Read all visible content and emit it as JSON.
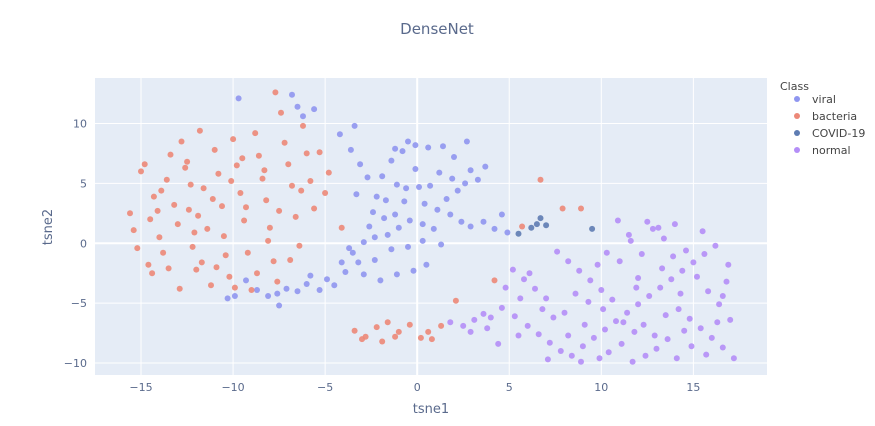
{
  "chart_data": {
    "type": "scatter",
    "title": "DenseNet",
    "xlabel": "tsne1",
    "ylabel": "tsne2",
    "xlim": [
      -17.5,
      19
    ],
    "ylim": [
      -11,
      13.8
    ],
    "xticks": [
      -15,
      -10,
      -5,
      0,
      5,
      10,
      15
    ],
    "yticks": [
      -10,
      -5,
      0,
      5,
      10
    ],
    "grid": true,
    "legend": {
      "title": "Class",
      "placement": "right"
    },
    "colors": {
      "viral": "#8f96f0",
      "bacteria": "#ec8878",
      "COVID-19": "#5e7cb2",
      "normal": "#b48ef7",
      "plot_bg": "#e5ecf6",
      "grid": "#ffffff"
    },
    "series": [
      {
        "name": "viral",
        "points": [
          [
            -9.7,
            12.1
          ],
          [
            -6.8,
            12.4
          ],
          [
            -6.5,
            11.4
          ],
          [
            -5.6,
            11.2
          ],
          [
            -6.2,
            10.6
          ],
          [
            -4.2,
            9.1
          ],
          [
            -3.4,
            9.8
          ],
          [
            -3.6,
            7.8
          ],
          [
            -3.1,
            6.6
          ],
          [
            -2.7,
            5.5
          ],
          [
            -3.3,
            4.1
          ],
          [
            -2.2,
            3.9
          ],
          [
            -1.9,
            5.6
          ],
          [
            -1.4,
            6.9
          ],
          [
            -0.8,
            7.7
          ],
          [
            -0.5,
            8.5
          ],
          [
            -0.1,
            8.2
          ],
          [
            0.6,
            8.0
          ],
          [
            1.4,
            8.1
          ],
          [
            2.0,
            7.2
          ],
          [
            2.7,
            8.5
          ],
          [
            2.9,
            6.1
          ],
          [
            3.3,
            5.3
          ],
          [
            3.7,
            6.4
          ],
          [
            1.2,
            5.9
          ],
          [
            0.7,
            4.8
          ],
          [
            0.1,
            4.7
          ],
          [
            -0.6,
            4.6
          ],
          [
            -1.1,
            4.9
          ],
          [
            -1.7,
            3.6
          ],
          [
            -2.4,
            2.6
          ],
          [
            -1.2,
            2.4
          ],
          [
            -0.7,
            3.5
          ],
          [
            0.4,
            3.3
          ],
          [
            1.1,
            2.8
          ],
          [
            1.8,
            2.4
          ],
          [
            2.4,
            1.8
          ],
          [
            2.9,
            1.4
          ],
          [
            3.6,
            1.8
          ],
          [
            4.2,
            1.2
          ],
          [
            4.6,
            2.4
          ],
          [
            4.9,
            0.9
          ],
          [
            0.9,
            1.2
          ],
          [
            0.3,
            1.6
          ],
          [
            -0.4,
            1.9
          ],
          [
            -1.0,
            1.3
          ],
          [
            -1.6,
            0.7
          ],
          [
            -2.3,
            0.5
          ],
          [
            -2.9,
            0.1
          ],
          [
            -3.5,
            -0.8
          ],
          [
            -3.2,
            -1.6
          ],
          [
            -2.3,
            -1.4
          ],
          [
            -1.4,
            -0.5
          ],
          [
            -0.5,
            -0.3
          ],
          [
            0.3,
            0.2
          ],
          [
            1.3,
            -0.1
          ],
          [
            -3.9,
            -2.4
          ],
          [
            -4.5,
            -3.5
          ],
          [
            -4.9,
            -3.0
          ],
          [
            -5.3,
            -3.9
          ],
          [
            -6.0,
            -3.4
          ],
          [
            -6.5,
            -4.0
          ],
          [
            -7.1,
            -3.8
          ],
          [
            -7.6,
            -4.2
          ],
          [
            -8.1,
            -4.4
          ],
          [
            -8.7,
            -3.9
          ],
          [
            -9.3,
            -3.1
          ],
          [
            -9.9,
            -4.4
          ],
          [
            -10.3,
            -4.6
          ],
          [
            -7.5,
            -5.2
          ],
          [
            -2.9,
            -2.6
          ],
          [
            -2.0,
            -3.1
          ],
          [
            -1.1,
            -2.6
          ],
          [
            -0.2,
            -2.3
          ],
          [
            0.5,
            -1.8
          ],
          [
            -5.8,
            -2.7
          ],
          [
            -4.1,
            -1.6
          ],
          [
            -3.7,
            -0.4
          ],
          [
            2.2,
            4.4
          ],
          [
            1.6,
            3.7
          ],
          [
            -1.8,
            2.1
          ],
          [
            -2.6,
            1.4
          ],
          [
            1.9,
            5.4
          ],
          [
            2.6,
            5.0
          ],
          [
            -0.1,
            6.2
          ],
          [
            -1.2,
            7.9
          ]
        ]
      },
      {
        "name": "bacteria",
        "points": [
          [
            -15.6,
            2.5
          ],
          [
            -15.4,
            1.1
          ],
          [
            -15.0,
            6.0
          ],
          [
            -14.8,
            6.6
          ],
          [
            -14.5,
            2.0
          ],
          [
            -14.3,
            3.9
          ],
          [
            -14.0,
            0.5
          ],
          [
            -13.8,
            -0.8
          ],
          [
            -13.6,
            5.3
          ],
          [
            -13.4,
            7.4
          ],
          [
            -13.2,
            3.2
          ],
          [
            -13.0,
            1.6
          ],
          [
            -12.8,
            8.5
          ],
          [
            -12.6,
            6.3
          ],
          [
            -12.4,
            2.8
          ],
          [
            -12.2,
            -0.3
          ],
          [
            -12.0,
            -2.2
          ],
          [
            -11.8,
            9.4
          ],
          [
            -11.6,
            4.6
          ],
          [
            -11.4,
            1.2
          ],
          [
            -11.2,
            -3.5
          ],
          [
            -11.0,
            7.8
          ],
          [
            -10.8,
            5.8
          ],
          [
            -10.6,
            3.1
          ],
          [
            -10.4,
            -1.0
          ],
          [
            -10.2,
            -2.8
          ],
          [
            -10.0,
            8.7
          ],
          [
            -9.8,
            6.5
          ],
          [
            -9.6,
            4.2
          ],
          [
            -9.4,
            1.9
          ],
          [
            -9.2,
            -0.8
          ],
          [
            -9.0,
            -3.9
          ],
          [
            -8.8,
            9.2
          ],
          [
            -8.6,
            7.3
          ],
          [
            -8.4,
            5.4
          ],
          [
            -8.2,
            3.6
          ],
          [
            -8.0,
            1.3
          ],
          [
            -7.8,
            -1.5
          ],
          [
            -7.7,
            12.6
          ],
          [
            -7.6,
            -3.2
          ],
          [
            -7.4,
            10.9
          ],
          [
            -7.2,
            8.4
          ],
          [
            -7.0,
            6.6
          ],
          [
            -6.8,
            4.8
          ],
          [
            -6.6,
            2.2
          ],
          [
            -6.4,
            -0.2
          ],
          [
            -6.2,
            9.8
          ],
          [
            -6.0,
            7.5
          ],
          [
            -5.8,
            5.2
          ],
          [
            -5.6,
            2.9
          ],
          [
            -5.3,
            7.6
          ],
          [
            -5.0,
            4.2
          ],
          [
            -4.8,
            5.9
          ],
          [
            -15.2,
            -0.4
          ],
          [
            -14.6,
            -1.8
          ],
          [
            -14.1,
            2.7
          ],
          [
            -13.5,
            -2.1
          ],
          [
            -12.9,
            -3.8
          ],
          [
            -12.3,
            4.9
          ],
          [
            -11.7,
            -1.6
          ],
          [
            -11.1,
            3.7
          ],
          [
            -10.5,
            0.6
          ],
          [
            -9.9,
            -3.7
          ],
          [
            -9.3,
            3.0
          ],
          [
            -8.7,
            -2.5
          ],
          [
            -8.1,
            0.2
          ],
          [
            -7.5,
            2.7
          ],
          [
            -6.9,
            -1.4
          ],
          [
            -6.3,
            4.4
          ],
          [
            -12.5,
            6.8
          ],
          [
            -11.9,
            2.3
          ],
          [
            -10.9,
            -2.0
          ],
          [
            -10.1,
            5.2
          ],
          [
            -9.5,
            7.1
          ],
          [
            -8.3,
            6.1
          ],
          [
            -13.9,
            4.4
          ],
          [
            -14.4,
            -2.5
          ],
          [
            -12.1,
            0.9
          ],
          [
            -4.1,
            1.3
          ],
          [
            -3.4,
            -7.3
          ],
          [
            -2.8,
            -7.8
          ],
          [
            -2.2,
            -7.0
          ],
          [
            -1.6,
            -6.6
          ],
          [
            -1.0,
            -7.4
          ],
          [
            -0.4,
            -6.8
          ],
          [
            0.2,
            -7.9
          ],
          [
            0.8,
            -8.0
          ],
          [
            0.6,
            -7.4
          ],
          [
            1.3,
            -6.9
          ],
          [
            -3.0,
            -8.0
          ],
          [
            -1.9,
            -8.2
          ],
          [
            -1.2,
            -7.8
          ],
          [
            2.1,
            -4.8
          ],
          [
            4.2,
            -3.1
          ],
          [
            5.7,
            1.4
          ],
          [
            6.7,
            5.3
          ],
          [
            7.9,
            2.9
          ],
          [
            8.9,
            2.9
          ]
        ]
      },
      {
        "name": "COVID-19",
        "points": [
          [
            5.5,
            0.8
          ],
          [
            6.2,
            1.3
          ],
          [
            6.5,
            1.6
          ],
          [
            6.7,
            2.1
          ],
          [
            7.0,
            1.5
          ],
          [
            9.5,
            1.2
          ]
        ]
      },
      {
        "name": "normal",
        "points": [
          [
            4.6,
            -5.4
          ],
          [
            5.3,
            -6.1
          ],
          [
            6.0,
            -6.9
          ],
          [
            6.6,
            -7.6
          ],
          [
            7.2,
            -8.3
          ],
          [
            7.8,
            -9.0
          ],
          [
            8.4,
            -9.4
          ],
          [
            9.0,
            -8.6
          ],
          [
            9.6,
            -7.9
          ],
          [
            10.2,
            -7.2
          ],
          [
            10.8,
            -6.5
          ],
          [
            11.4,
            -5.8
          ],
          [
            12.0,
            -5.1
          ],
          [
            12.6,
            -4.4
          ],
          [
            13.2,
            -3.7
          ],
          [
            13.8,
            -3.0
          ],
          [
            14.4,
            -2.3
          ],
          [
            15.0,
            -1.6
          ],
          [
            15.6,
            -0.9
          ],
          [
            16.2,
            -0.2
          ],
          [
            16.8,
            -3.2
          ],
          [
            17.2,
            -9.6
          ],
          [
            16.6,
            -8.7
          ],
          [
            16.0,
            -7.9
          ],
          [
            15.4,
            -7.1
          ],
          [
            14.8,
            -6.3
          ],
          [
            14.2,
            -5.5
          ],
          [
            13.6,
            -8.0
          ],
          [
            13.0,
            -8.8
          ],
          [
            12.4,
            -9.4
          ],
          [
            11.8,
            -7.4
          ],
          [
            11.2,
            -6.6
          ],
          [
            10.6,
            -4.7
          ],
          [
            10.0,
            -3.9
          ],
          [
            9.4,
            -3.1
          ],
          [
            8.8,
            -2.3
          ],
          [
            8.2,
            -1.5
          ],
          [
            7.6,
            -0.7
          ],
          [
            7.0,
            -4.6
          ],
          [
            6.4,
            -3.8
          ],
          [
            5.8,
            -3.0
          ],
          [
            5.2,
            -2.2
          ],
          [
            10.3,
            -0.8
          ],
          [
            11.0,
            -1.5
          ],
          [
            11.6,
            0.2
          ],
          [
            12.2,
            -0.9
          ],
          [
            12.8,
            1.2
          ],
          [
            13.4,
            0.4
          ],
          [
            14.0,
            1.6
          ],
          [
            14.6,
            -0.6
          ],
          [
            15.2,
            -2.8
          ],
          [
            15.8,
            -4.0
          ],
          [
            16.4,
            -5.1
          ],
          [
            17.0,
            -6.4
          ],
          [
            12.5,
            1.8
          ],
          [
            13.1,
            1.3
          ],
          [
            10.9,
            1.9
          ],
          [
            11.5,
            0.7
          ],
          [
            9.8,
            -1.8
          ],
          [
            8.6,
            -4.2
          ],
          [
            7.4,
            -6.2
          ],
          [
            6.8,
            -5.5
          ],
          [
            5.6,
            -4.6
          ],
          [
            4.8,
            -3.7
          ],
          [
            2.5,
            -6.9
          ],
          [
            3.1,
            -6.4
          ],
          [
            3.8,
            -7.1
          ],
          [
            1.8,
            -6.6
          ],
          [
            2.9,
            -7.4
          ],
          [
            4.0,
            -6.2
          ],
          [
            8.2,
            -7.7
          ],
          [
            9.1,
            -6.8
          ],
          [
            10.4,
            -9.1
          ],
          [
            11.1,
            -8.4
          ],
          [
            12.3,
            -6.8
          ],
          [
            13.5,
            -6.0
          ],
          [
            14.9,
            -8.6
          ],
          [
            15.7,
            -9.3
          ],
          [
            16.3,
            -6.6
          ],
          [
            14.1,
            -9.6
          ],
          [
            12.9,
            -7.7
          ],
          [
            11.7,
            -9.9
          ],
          [
            9.9,
            -9.6
          ],
          [
            8.9,
            -9.9
          ],
          [
            7.1,
            -9.7
          ],
          [
            10.1,
            -5.5
          ],
          [
            11.9,
            -3.7
          ],
          [
            13.3,
            -2.1
          ],
          [
            14.3,
            -4.2
          ],
          [
            16.9,
            -1.8
          ],
          [
            15.5,
            1.0
          ],
          [
            13.9,
            -1.1
          ],
          [
            6.1,
            -2.5
          ],
          [
            5.5,
            -7.7
          ],
          [
            4.4,
            -8.4
          ],
          [
            3.6,
            -5.9
          ],
          [
            8.0,
            -5.8
          ],
          [
            9.3,
            -4.9
          ],
          [
            12.0,
            -2.9
          ],
          [
            14.5,
            -7.3
          ],
          [
            16.6,
            -4.4
          ]
        ]
      }
    ]
  }
}
